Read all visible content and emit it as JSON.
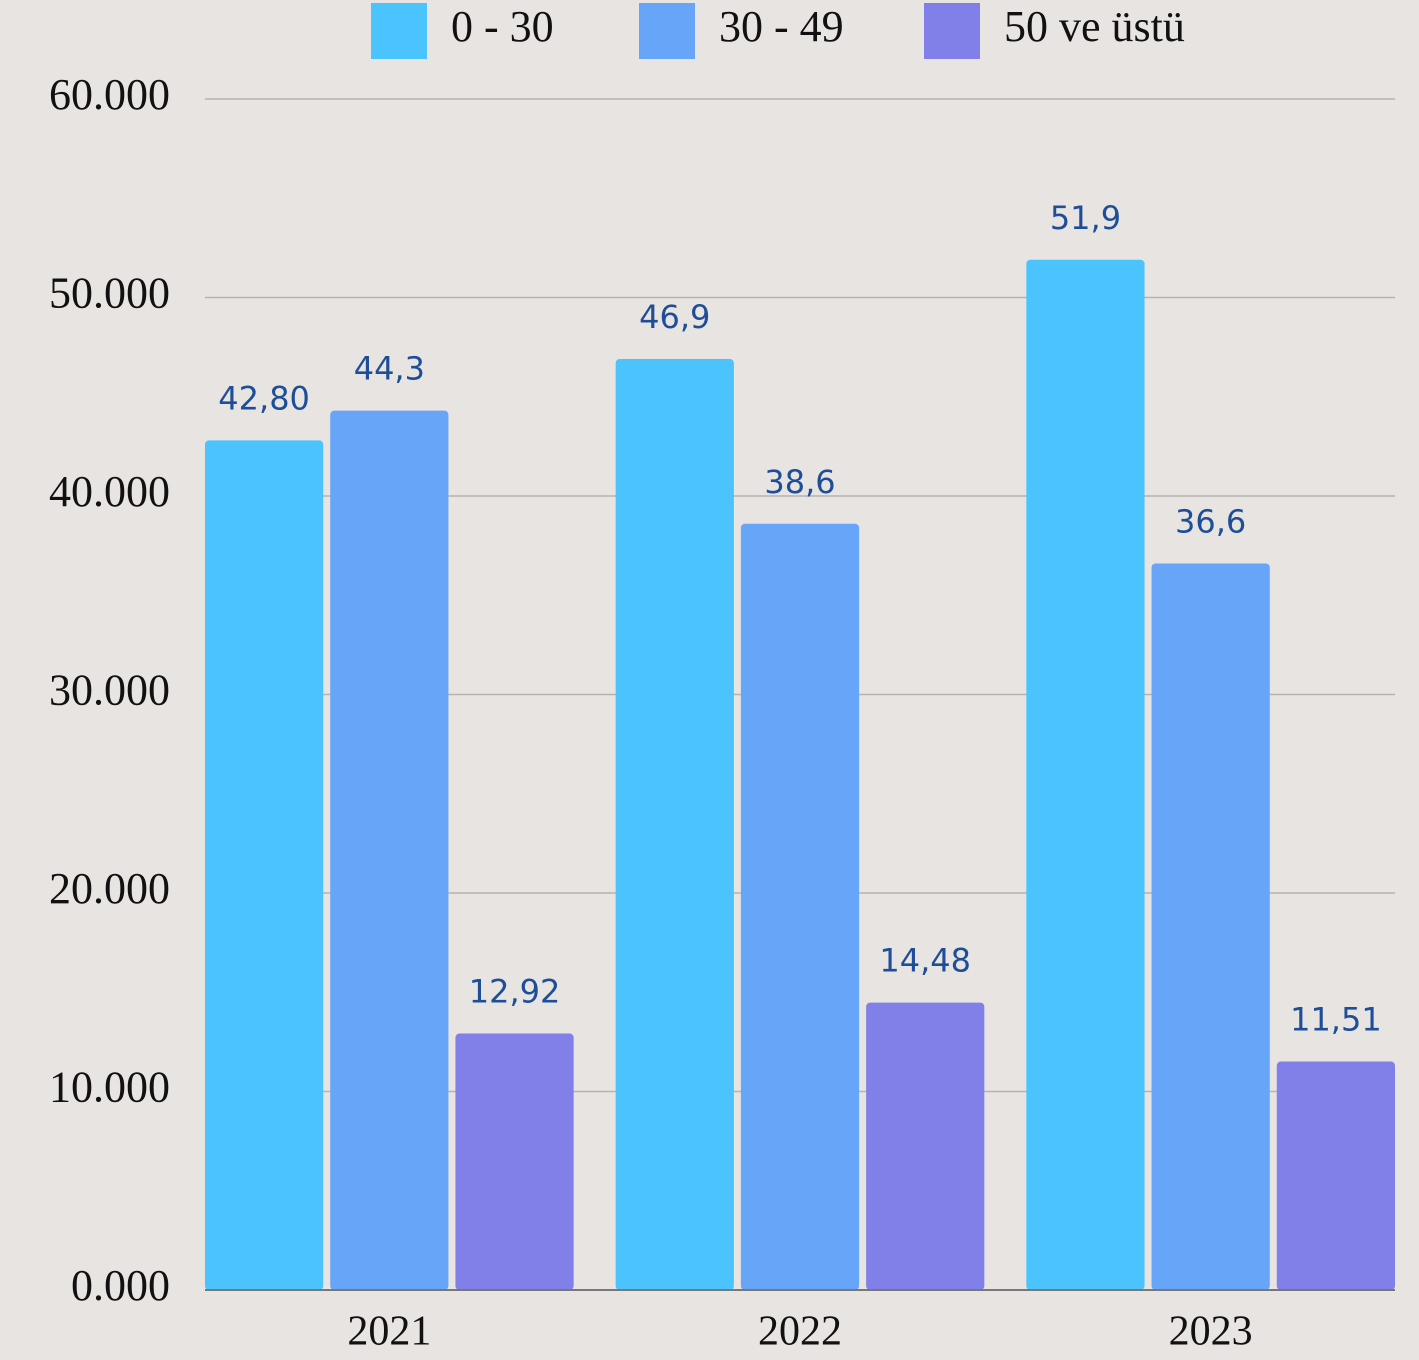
{
  "chart_data": {
    "type": "bar",
    "categories": [
      "2021",
      "2022",
      "2023"
    ],
    "series": [
      {
        "name": "0 - 30",
        "color": "#4bc3fd",
        "values": [
          42.8,
          46.9,
          51.9
        ],
        "value_labels": [
          "42,80",
          "46,9",
          "51,9"
        ]
      },
      {
        "name": "30 - 49",
        "color": "#67a5f8",
        "values": [
          44.3,
          38.6,
          36.6
        ],
        "value_labels": [
          "44,3",
          "38,6",
          "36,6"
        ]
      },
      {
        "name": "50 ve üstü",
        "color": "#8080e8",
        "values": [
          12.92,
          14.48,
          11.51
        ],
        "value_labels": [
          "12,92",
          "14,48",
          "11,51"
        ]
      }
    ],
    "ylim": [
      0,
      60
    ],
    "yticks": [
      {
        "value": 0,
        "label": "0.000"
      },
      {
        "value": 10,
        "label": "10.000"
      },
      {
        "value": 20,
        "label": "20.000"
      },
      {
        "value": 30,
        "label": "30.000"
      },
      {
        "value": 40,
        "label": "40.000"
      },
      {
        "value": 50,
        "label": "50.000"
      },
      {
        "value": 60,
        "label": "60.000"
      }
    ],
    "grid": true,
    "legend": "top"
  }
}
